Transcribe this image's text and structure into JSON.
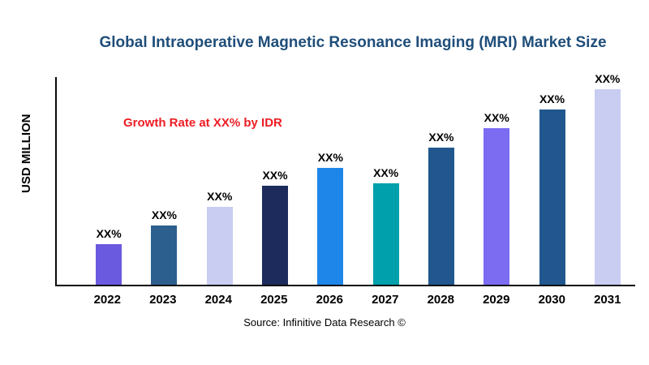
{
  "title": "Global Intraoperative Magnetic Resonance Imaging (MRI) Market Size",
  "title_color": "#1F4E7A",
  "source": "Source: Infinitive Data Research ©",
  "chart_data": {
    "type": "bar",
    "title": "Global Intraoperative Magnetic Resonance Imaging (MRI) Market Size",
    "xlabel": "",
    "ylabel": "USD MILLION",
    "annotation": "Growth Rate at XX% by IDR",
    "annotation_color": "#ED1C24",
    "categories": [
      "2022",
      "2023",
      "2024",
      "2025",
      "2026",
      "2027",
      "2028",
      "2029",
      "2030",
      "2031"
    ],
    "values": [
      50,
      74,
      97,
      123,
      145,
      126,
      170,
      194,
      218,
      243
    ],
    "bar_labels": [
      "XX%",
      "XX%",
      "XX%",
      "XX%",
      "XX%",
      "XX%",
      "XX%",
      "XX%",
      "XX%",
      "XX%"
    ],
    "colors": [
      "#6A5AE0",
      "#2C5F8E",
      "#C9CDF2",
      "#1C2B5C",
      "#1E86E8",
      "#00A0AC",
      "#21578E",
      "#7B6CF2",
      "#21578E",
      "#C9CDF2"
    ],
    "ylim": [
      0,
      260
    ],
    "grid": false,
    "legend": false,
    "legend_position": "none",
    "axis_color": "#0a0a0a"
  }
}
